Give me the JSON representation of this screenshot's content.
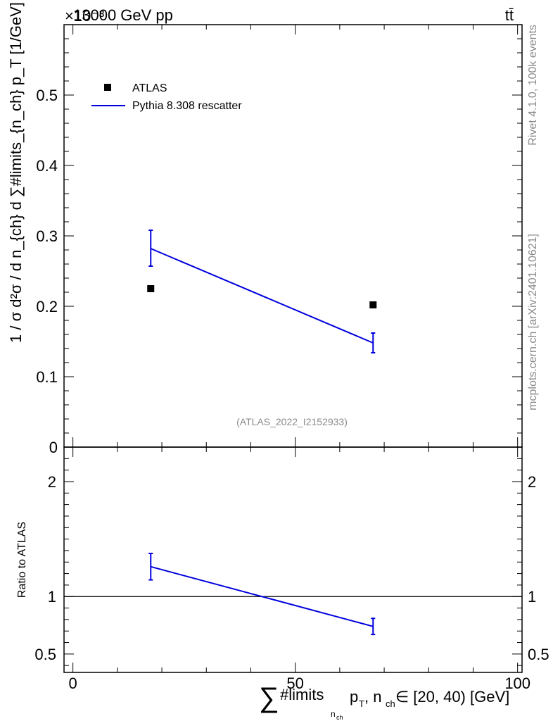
{
  "chart_data": [
    {
      "type": "scatter+line",
      "name": "main-panel",
      "header_left": "13000 GeV pp",
      "header_right": "tt̄",
      "exponent_label": "×10⁻³",
      "ylabel": "1 / σ d²σ / d n_{ch} d ∑#limits_{n_ch} p_T [1/GeV]",
      "xlim": [
        -2,
        101
      ],
      "ylim": [
        0,
        0.6
      ],
      "y_ticks": [
        {
          "v": 0,
          "label": "0"
        },
        {
          "v": 0.1,
          "label": "0.1"
        },
        {
          "v": 0.2,
          "label": "0.2"
        },
        {
          "v": 0.3,
          "label": "0.3"
        },
        {
          "v": 0.4,
          "label": "0.4"
        },
        {
          "v": 0.5,
          "label": "0.5"
        }
      ],
      "series": [
        {
          "name": "ATLAS",
          "style": "marker",
          "color": "#000000",
          "x": [
            17.5,
            67.5
          ],
          "y": [
            0.225,
            0.202
          ]
        },
        {
          "name": "Pythia 8.308 rescatter",
          "style": "line",
          "color": "#0000dd",
          "x": [
            17.5,
            67.5
          ],
          "y": [
            0.282,
            0.148
          ],
          "err_low": [
            0.025,
            0.014
          ],
          "err_high": [
            0.026,
            0.014
          ]
        }
      ],
      "legend": [
        {
          "label": "ATLAS",
          "kind": "marker"
        },
        {
          "label": "Pythia 8.308 rescatter",
          "kind": "line"
        }
      ],
      "watermark": "(ATLAS_2022_I2152933)",
      "side_text_top": "Rivet 4.1.0,  100k events",
      "side_text_bottom": "mcplots.cern.ch [arXiv:2401.10621]"
    },
    {
      "type": "line",
      "name": "ratio-panel",
      "ylabel": "Ratio to ATLAS",
      "xlabel": "∑#limits_{n_ch} p_T, n_ch ∈ [20, 40) [GeV]",
      "xlim": [
        -2,
        101
      ],
      "ylim": [
        0.34,
        2.3
      ],
      "x_ticks": [
        {
          "v": 0,
          "label": "0"
        },
        {
          "v": 50,
          "label": "50"
        },
        {
          "v": 100,
          "label": "100"
        }
      ],
      "y_ticks": [
        {
          "v": 0.5,
          "label": "0.5"
        },
        {
          "v": 1,
          "label": "1"
        },
        {
          "v": 2,
          "label": "2"
        }
      ],
      "reference": 1,
      "series": [
        {
          "name": "Pythia 8.308 rescatter",
          "color": "#0000dd",
          "x": [
            17.5,
            67.5
          ],
          "y": [
            1.26,
            0.74
          ],
          "err_low": [
            0.115,
            0.07
          ],
          "err_high": [
            0.115,
            0.07
          ]
        }
      ]
    }
  ],
  "text": {
    "xlabel_sum": "∑",
    "xlabel_main": "#limits",
    "xlabel_sub1": "n",
    "xlabel_sub1b": "ch",
    "xlabel_pt": "p",
    "xlabel_pt_sub": "T",
    "xlabel_rest": ", n",
    "xlabel_nch_sub": "ch",
    "xlabel_tail": " ∈ [20, 40) [GeV]"
  }
}
